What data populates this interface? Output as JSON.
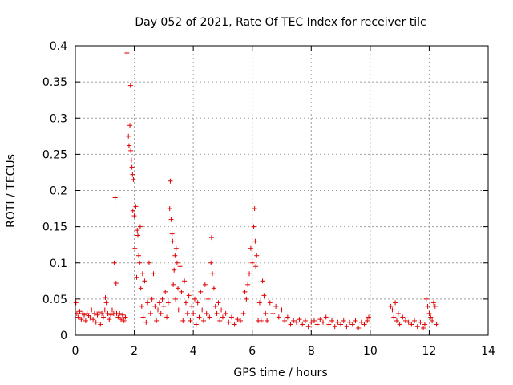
{
  "chart_data": {
    "type": "scatter",
    "title": "Day 052 of 2021, Rate Of TEC Index for receiver tilc",
    "xlabel": "GPS time / hours",
    "ylabel": "ROTI / TECUs",
    "xlim": [
      0,
      14
    ],
    "ylim": [
      0,
      0.4
    ],
    "xticks": [
      "0",
      "2",
      "4",
      "6",
      "8",
      "10",
      "12",
      "14"
    ],
    "yticks": [
      "0",
      "0.05",
      "0.1",
      "0.15",
      "0.2",
      "0.25",
      "0.3",
      "0.35",
      "0.4"
    ],
    "grid": true,
    "marker": "plus",
    "color": "#e00000",
    "points": [
      [
        0.02,
        0.045
      ],
      [
        0.05,
        0.03
      ],
      [
        0.1,
        0.025
      ],
      [
        0.15,
        0.033
      ],
      [
        0.2,
        0.022
      ],
      [
        0.25,
        0.03
      ],
      [
        0.3,
        0.028
      ],
      [
        0.35,
        0.02
      ],
      [
        0.4,
        0.03
      ],
      [
        0.45,
        0.027
      ],
      [
        0.5,
        0.024
      ],
      [
        0.55,
        0.035
      ],
      [
        0.6,
        0.022
      ],
      [
        0.65,
        0.03
      ],
      [
        0.7,
        0.018
      ],
      [
        0.75,
        0.028
      ],
      [
        0.8,
        0.032
      ],
      [
        0.85,
        0.015
      ],
      [
        0.9,
        0.03
      ],
      [
        0.95,
        0.025
      ],
      [
        1.0,
        0.035
      ],
      [
        1.02,
        0.052
      ],
      [
        1.05,
        0.045
      ],
      [
        1.1,
        0.03
      ],
      [
        1.15,
        0.022
      ],
      [
        1.2,
        0.028
      ],
      [
        1.25,
        0.035
      ],
      [
        1.3,
        0.03
      ],
      [
        1.32,
        0.1
      ],
      [
        1.35,
        0.19
      ],
      [
        1.38,
        0.072
      ],
      [
        1.4,
        0.03
      ],
      [
        1.45,
        0.025
      ],
      [
        1.5,
        0.03
      ],
      [
        1.55,
        0.022
      ],
      [
        1.6,
        0.028
      ],
      [
        1.65,
        0.02
      ],
      [
        1.7,
        0.025
      ],
      [
        1.75,
        0.39
      ],
      [
        1.8,
        0.275
      ],
      [
        1.82,
        0.262
      ],
      [
        1.85,
        0.29
      ],
      [
        1.87,
        0.345
      ],
      [
        1.88,
        0.255
      ],
      [
        1.9,
        0.242
      ],
      [
        1.92,
        0.232
      ],
      [
        1.94,
        0.222
      ],
      [
        1.95,
        0.172
      ],
      [
        1.97,
        0.215
      ],
      [
        2.0,
        0.165
      ],
      [
        2.02,
        0.12
      ],
      [
        2.05,
        0.178
      ],
      [
        2.08,
        0.08
      ],
      [
        2.1,
        0.145
      ],
      [
        2.12,
        0.138
      ],
      [
        2.15,
        0.11
      ],
      [
        2.18,
        0.1
      ],
      [
        2.2,
        0.15
      ],
      [
        2.22,
        0.065
      ],
      [
        2.25,
        0.04
      ],
      [
        2.28,
        0.085
      ],
      [
        2.3,
        0.025
      ],
      [
        2.35,
        0.075
      ],
      [
        2.4,
        0.018
      ],
      [
        2.45,
        0.045
      ],
      [
        2.5,
        0.1
      ],
      [
        2.55,
        0.03
      ],
      [
        2.6,
        0.05
      ],
      [
        2.65,
        0.085
      ],
      [
        2.7,
        0.04
      ],
      [
        2.75,
        0.02
      ],
      [
        2.8,
        0.035
      ],
      [
        2.85,
        0.045
      ],
      [
        2.9,
        0.03
      ],
      [
        2.95,
        0.05
      ],
      [
        3.0,
        0.04
      ],
      [
        3.05,
        0.06
      ],
      [
        3.1,
        0.025
      ],
      [
        3.15,
        0.045
      ],
      [
        3.2,
        0.175
      ],
      [
        3.22,
        0.213
      ],
      [
        3.25,
        0.16
      ],
      [
        3.28,
        0.14
      ],
      [
        3.3,
        0.13
      ],
      [
        3.32,
        0.07
      ],
      [
        3.35,
        0.09
      ],
      [
        3.38,
        0.11
      ],
      [
        3.4,
        0.05
      ],
      [
        3.42,
        0.12
      ],
      [
        3.45,
        0.1
      ],
      [
        3.48,
        0.065
      ],
      [
        3.5,
        0.035
      ],
      [
        3.55,
        0.095
      ],
      [
        3.6,
        0.06
      ],
      [
        3.65,
        0.02
      ],
      [
        3.7,
        0.075
      ],
      [
        3.75,
        0.045
      ],
      [
        3.8,
        0.03
      ],
      [
        3.85,
        0.055
      ],
      [
        3.9,
        0.02
      ],
      [
        3.95,
        0.04
      ],
      [
        4.0,
        0.03
      ],
      [
        4.05,
        0.05
      ],
      [
        4.1,
        0.015
      ],
      [
        4.15,
        0.045
      ],
      [
        4.2,
        0.025
      ],
      [
        4.25,
        0.06
      ],
      [
        4.3,
        0.035
      ],
      [
        4.35,
        0.02
      ],
      [
        4.4,
        0.07
      ],
      [
        4.45,
        0.03
      ],
      [
        4.5,
        0.05
      ],
      [
        4.55,
        0.025
      ],
      [
        4.6,
        0.1
      ],
      [
        4.62,
        0.135
      ],
      [
        4.65,
        0.085
      ],
      [
        4.7,
        0.065
      ],
      [
        4.75,
        0.04
      ],
      [
        4.8,
        0.03
      ],
      [
        4.85,
        0.045
      ],
      [
        4.9,
        0.02
      ],
      [
        4.95,
        0.035
      ],
      [
        5.0,
        0.025
      ],
      [
        5.1,
        0.03
      ],
      [
        5.2,
        0.018
      ],
      [
        5.3,
        0.025
      ],
      [
        5.4,
        0.015
      ],
      [
        5.5,
        0.022
      ],
      [
        5.6,
        0.02
      ],
      [
        5.7,
        0.03
      ],
      [
        5.75,
        0.06
      ],
      [
        5.8,
        0.05
      ],
      [
        5.85,
        0.07
      ],
      [
        5.9,
        0.085
      ],
      [
        5.95,
        0.12
      ],
      [
        6.0,
        0.1
      ],
      [
        6.05,
        0.15
      ],
      [
        6.08,
        0.175
      ],
      [
        6.1,
        0.13
      ],
      [
        6.12,
        0.095
      ],
      [
        6.15,
        0.11
      ],
      [
        6.2,
        0.02
      ],
      [
        6.25,
        0.045
      ],
      [
        6.3,
        0.02
      ],
      [
        6.35,
        0.075
      ],
      [
        6.4,
        0.055
      ],
      [
        6.45,
        0.03
      ],
      [
        6.5,
        0.02
      ],
      [
        6.6,
        0.045
      ],
      [
        6.7,
        0.03
      ],
      [
        6.8,
        0.04
      ],
      [
        6.9,
        0.025
      ],
      [
        7.0,
        0.035
      ],
      [
        7.1,
        0.02
      ],
      [
        7.2,
        0.025
      ],
      [
        7.3,
        0.015
      ],
      [
        7.4,
        0.02
      ],
      [
        7.5,
        0.018
      ],
      [
        7.6,
        0.022
      ],
      [
        7.7,
        0.015
      ],
      [
        7.8,
        0.02
      ],
      [
        7.9,
        0.012
      ],
      [
        8.0,
        0.018
      ],
      [
        8.1,
        0.02
      ],
      [
        8.2,
        0.015
      ],
      [
        8.3,
        0.022
      ],
      [
        8.4,
        0.018
      ],
      [
        8.5,
        0.025
      ],
      [
        8.6,
        0.015
      ],
      [
        8.7,
        0.02
      ],
      [
        8.8,
        0.012
      ],
      [
        8.9,
        0.018
      ],
      [
        9.0,
        0.015
      ],
      [
        9.1,
        0.02
      ],
      [
        9.2,
        0.012
      ],
      [
        9.3,
        0.018
      ],
      [
        9.4,
        0.015
      ],
      [
        9.5,
        0.02
      ],
      [
        9.6,
        0.01
      ],
      [
        9.7,
        0.018
      ],
      [
        9.8,
        0.015
      ],
      [
        9.9,
        0.02
      ],
      [
        9.95,
        0.025
      ],
      [
        10.7,
        0.04
      ],
      [
        10.75,
        0.035
      ],
      [
        10.8,
        0.025
      ],
      [
        10.85,
        0.045
      ],
      [
        10.9,
        0.02
      ],
      [
        10.95,
        0.03
      ],
      [
        11.0,
        0.015
      ],
      [
        11.1,
        0.025
      ],
      [
        11.2,
        0.02
      ],
      [
        11.3,
        0.018
      ],
      [
        11.4,
        0.015
      ],
      [
        11.5,
        0.02
      ],
      [
        11.6,
        0.012
      ],
      [
        11.7,
        0.018
      ],
      [
        11.8,
        0.01
      ],
      [
        11.85,
        0.015
      ],
      [
        11.9,
        0.05
      ],
      [
        11.95,
        0.04
      ],
      [
        12.0,
        0.03
      ],
      [
        12.05,
        0.025
      ],
      [
        12.1,
        0.02
      ],
      [
        12.15,
        0.045
      ],
      [
        12.2,
        0.04
      ],
      [
        12.25,
        0.015
      ]
    ]
  }
}
